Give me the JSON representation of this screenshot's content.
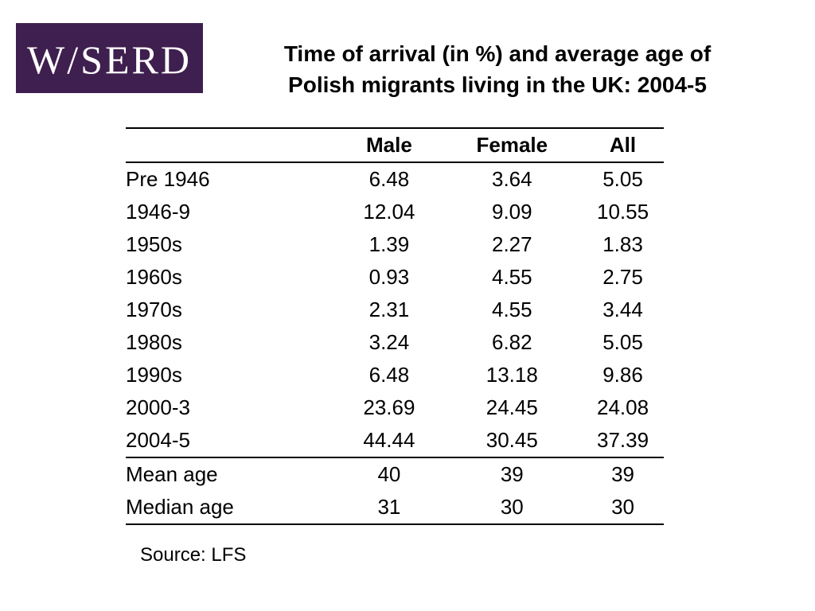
{
  "logo": {
    "text": "W/SERD"
  },
  "title": {
    "line1": "Time of arrival (in %) and average age of",
    "line2": "Polish migrants living in the UK: 2004-5"
  },
  "table": {
    "headers": [
      "",
      "Male",
      "Female",
      "All"
    ],
    "rows": [
      [
        "Pre 1946",
        "6.48",
        "3.64",
        "5.05"
      ],
      [
        "1946-9",
        "12.04",
        "9.09",
        "10.55"
      ],
      [
        "1950s",
        "1.39",
        "2.27",
        "1.83"
      ],
      [
        "1960s",
        "0.93",
        "4.55",
        "2.75"
      ],
      [
        "1970s",
        "2.31",
        "4.55",
        "3.44"
      ],
      [
        "1980s",
        "3.24",
        "6.82",
        "5.05"
      ],
      [
        "1990s",
        "6.48",
        "13.18",
        "9.86"
      ],
      [
        "2000-3",
        "23.69",
        "24.45",
        "24.08"
      ],
      [
        "2004-5",
        "44.44",
        "30.45",
        "37.39"
      ],
      [
        "Mean age",
        "40",
        "39",
        "39"
      ],
      [
        "Median age",
        "31",
        "30",
        "30"
      ]
    ]
  },
  "source": "Source: LFS",
  "colors": {
    "logo_background": "#3f1f4f",
    "logo_text": "#ffffff"
  }
}
